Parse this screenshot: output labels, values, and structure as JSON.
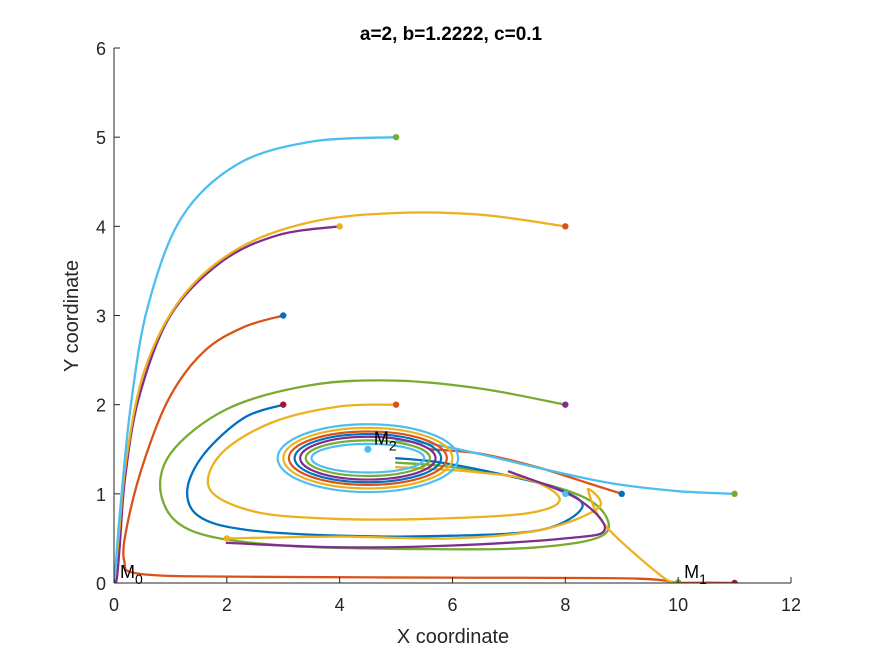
{
  "chart_data": {
    "type": "line",
    "title": "a=2, b=1.2222, c=0.1",
    "xlabel": "X coordinate",
    "ylabel": "Y coordinate",
    "xlim": [
      0,
      12
    ],
    "ylim": [
      0,
      6
    ],
    "xticks": [
      0,
      2,
      4,
      6,
      8,
      10,
      12
    ],
    "yticks": [
      0,
      1,
      2,
      3,
      4,
      5,
      6
    ],
    "grid": false,
    "legend": "none",
    "colors": [
      "#0072BD",
      "#D95319",
      "#EDB120",
      "#7E2F8E",
      "#77AC30",
      "#4DBEEE"
    ],
    "series": [
      {
        "color": "#D95319",
        "points": [
          [
            3,
            3
          ],
          [
            2.3,
            2.87
          ],
          [
            1.6,
            2.6
          ],
          [
            1,
            2.1
          ],
          [
            0.55,
            1.4
          ],
          [
            0.25,
            0.7
          ],
          [
            0.18,
            0.25
          ],
          [
            0.5,
            0.1
          ],
          [
            2.5,
            0.07
          ],
          [
            6,
            0.06
          ],
          [
            9.2,
            0.05
          ],
          [
            10,
            0
          ]
        ]
      },
      {
        "color": "#7E2F8E",
        "points": [
          [
            4,
            4
          ],
          [
            2.9,
            3.9
          ],
          [
            1.9,
            3.6
          ],
          [
            1,
            3
          ],
          [
            0.45,
            2.1
          ],
          [
            0.2,
            1.2
          ],
          [
            0.1,
            0.4
          ],
          [
            0.05,
            0.05
          ],
          [
            0,
            0
          ]
        ]
      },
      {
        "color": "#EDB120",
        "points": [
          [
            8,
            4
          ],
          [
            6.5,
            4.13
          ],
          [
            5,
            4.15
          ],
          [
            3.5,
            4.05
          ],
          [
            2.2,
            3.75
          ],
          [
            1.2,
            3.2
          ],
          [
            0.55,
            2.4
          ],
          [
            0.22,
            1.4
          ],
          [
            0.08,
            0.5
          ],
          [
            0,
            0
          ]
        ]
      },
      {
        "color": "#4DBEEE",
        "points": [
          [
            5,
            5
          ],
          [
            3.5,
            4.95
          ],
          [
            2.2,
            4.7
          ],
          [
            1.2,
            4.1
          ],
          [
            0.6,
            3.1
          ],
          [
            0.3,
            2
          ],
          [
            0.12,
            0.9
          ],
          [
            0.03,
            0.2
          ],
          [
            0,
            0
          ]
        ]
      },
      {
        "color": "#77AC30",
        "points": [
          [
            8,
            2
          ],
          [
            6.5,
            2.18
          ],
          [
            5,
            2.27
          ],
          [
            3.5,
            2.22
          ],
          [
            2,
            1.95
          ],
          [
            1,
            1.45
          ],
          [
            0.85,
            0.95
          ],
          [
            1.4,
            0.58
          ],
          [
            3,
            0.42
          ],
          [
            5.5,
            0.38
          ],
          [
            7.5,
            0.4
          ],
          [
            8.7,
            0.55
          ],
          [
            8.5,
            0.9
          ],
          [
            7.4,
            1.15
          ],
          [
            6,
            1.3
          ],
          [
            5,
            1.35
          ]
        ]
      },
      {
        "color": "#0072BD",
        "points": [
          [
            3,
            2
          ],
          [
            2.3,
            1.85
          ],
          [
            1.6,
            1.45
          ],
          [
            1.3,
            1.05
          ],
          [
            1.5,
            0.75
          ],
          [
            2.3,
            0.6
          ],
          [
            4,
            0.53
          ],
          [
            6,
            0.53
          ],
          [
            7.6,
            0.6
          ],
          [
            8.3,
            0.85
          ],
          [
            7.9,
            1.05
          ],
          [
            7,
            1.2
          ],
          [
            5.8,
            1.35
          ],
          [
            5,
            1.4
          ]
        ]
      },
      {
        "color": "#EDB120",
        "points": [
          [
            5,
            2
          ],
          [
            4,
            1.98
          ],
          [
            2.8,
            1.8
          ],
          [
            1.9,
            1.45
          ],
          [
            1.7,
            1.05
          ],
          [
            2.5,
            0.8
          ],
          [
            3.9,
            0.72
          ],
          [
            5.6,
            0.72
          ],
          [
            7.3,
            0.78
          ],
          [
            7.9,
            0.93
          ],
          [
            7.4,
            1.15
          ],
          [
            6.3,
            1.25
          ],
          [
            5,
            1.3
          ]
        ]
      },
      {
        "color": "#EDB120",
        "points": [
          [
            2,
            0.5
          ],
          [
            4,
            0.52
          ],
          [
            6,
            0.5
          ],
          [
            7.6,
            0.6
          ],
          [
            8.6,
            0.85
          ],
          [
            8.4,
            1.05
          ],
          [
            8.7,
            0.65
          ],
          [
            9.7,
            0.08
          ],
          [
            10,
            0
          ]
        ]
      },
      {
        "color": "#7E2F8E",
        "points": [
          [
            7,
            1.25
          ],
          [
            8.2,
            0.95
          ],
          [
            8.7,
            0.6
          ],
          [
            8,
            0.5
          ],
          [
            6,
            0.42
          ],
          [
            4,
            0.4
          ],
          [
            2,
            0.45
          ]
        ]
      },
      {
        "color": "#D95319",
        "points": [
          [
            9,
            1
          ],
          [
            8.4,
            1.12
          ],
          [
            7.5,
            1.3
          ],
          [
            6.5,
            1.45
          ],
          [
            5.6,
            1.5
          ]
        ]
      },
      {
        "color": "#4DBEEE",
        "points": [
          [
            11,
            1
          ],
          [
            10,
            1.03
          ],
          [
            8.8,
            1.12
          ],
          [
            7.6,
            1.28
          ],
          [
            6.6,
            1.43
          ],
          [
            5.7,
            1.55
          ],
          [
            5,
            1.6
          ]
        ]
      },
      {
        "color": "#0072BD",
        "points": [
          [
            11,
            0
          ],
          [
            10,
            0
          ]
        ]
      },
      {
        "color": "#D95319",
        "points": [
          [
            11,
            0
          ],
          [
            10.5,
            0.005
          ],
          [
            10,
            0
          ]
        ]
      }
    ],
    "cycles": [
      {
        "color": "#4DBEEE",
        "rx": 1.6,
        "ry": 0.38
      },
      {
        "color": "#EDB120",
        "rx": 1.5,
        "ry": 0.34
      },
      {
        "color": "#D95319",
        "rx": 1.4,
        "ry": 0.3
      },
      {
        "color": "#0072BD",
        "rx": 1.3,
        "ry": 0.27
      },
      {
        "color": "#7E2F8E",
        "rx": 1.2,
        "ry": 0.24
      },
      {
        "color": "#77AC30",
        "rx": 1.1,
        "ry": 0.2
      },
      {
        "color": "#4DBEEE",
        "rx": 1.0,
        "ry": 0.16
      }
    ],
    "cycle_center": [
      4.5,
      1.4
    ],
    "start_points": [
      {
        "x": 3,
        "y": 3,
        "color": "#0072BD"
      },
      {
        "x": 4,
        "y": 4,
        "color": "#EDB120"
      },
      {
        "x": 5,
        "y": 5,
        "color": "#77AC30"
      },
      {
        "x": 8,
        "y": 4,
        "color": "#D95319"
      },
      {
        "x": 8,
        "y": 2,
        "color": "#7E2F8E"
      },
      {
        "x": 3,
        "y": 2,
        "color": "#A2142F"
      },
      {
        "x": 5,
        "y": 2,
        "color": "#D95319"
      },
      {
        "x": 2,
        "y": 0.5,
        "color": "#EDB120"
      },
      {
        "x": 9,
        "y": 1,
        "color": "#0072BD"
      },
      {
        "x": 11,
        "y": 1,
        "color": "#77AC30"
      },
      {
        "x": 11,
        "y": 0,
        "color": "#A2142F"
      },
      {
        "x": 8,
        "y": 1,
        "color": "#4DBEEE"
      }
    ],
    "equilibria": [
      {
        "name": "M",
        "sub": "0",
        "x": 0,
        "y": 0,
        "color": "#7E2F8E"
      },
      {
        "name": "M",
        "sub": "1",
        "x": 10,
        "y": 0,
        "color": "#77AC30"
      },
      {
        "name": "M",
        "sub": "2",
        "x": 4.5,
        "y": 1.5,
        "color": "#4DBEEE"
      }
    ]
  }
}
